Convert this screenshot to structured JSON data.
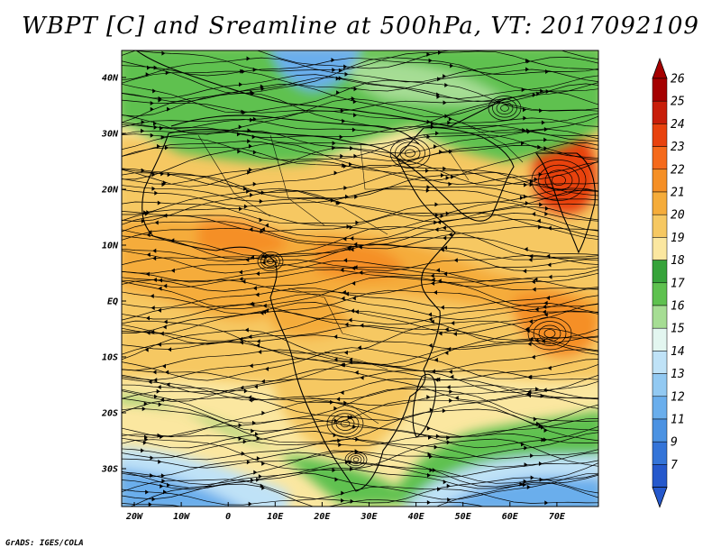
{
  "title": "WBPT [C] and Sreamline at 500hPa, VT: 2017092109",
  "credit": "GrADS: IGES/COLA",
  "lon_labels": [
    "20W",
    "10W",
    "0",
    "10E",
    "20E",
    "30E",
    "40E",
    "50E",
    "60E",
    "70E"
  ],
  "lat_labels": [
    "40N",
    "30N",
    "20N",
    "10N",
    "EQ",
    "10S",
    "20S",
    "30S"
  ],
  "colorbar": {
    "labels": [
      "26",
      "25",
      "24",
      "23",
      "22",
      "21",
      "20",
      "19",
      "18",
      "17",
      "16",
      "15",
      "14",
      "13",
      "12",
      "11",
      "9",
      "7"
    ],
    "colors": [
      "#a50000",
      "#c81e0a",
      "#e8420e",
      "#f56a1b",
      "#f58f25",
      "#f5ac3a",
      "#f6c862",
      "#fbe7a0",
      "#36a33a",
      "#5ec14f",
      "#a6dd94",
      "#e3f6f0",
      "#bfe2f7",
      "#92c9f2",
      "#6aaeec",
      "#4b92e2",
      "#3474d8",
      "#2558cc"
    ],
    "top_arrow": "#a50000",
    "bottom_arrow": "#2558cc"
  },
  "palette": {
    "green": "#5ec14f",
    "lightgreen": "#a6dd94",
    "pale": "#fbe7a0",
    "tan": "#f6c862",
    "orange": "#f5ac3a",
    "darkorange": "#f58f25",
    "red": "#e8420e",
    "blue": "#6aaeec",
    "lightblue": "#bfe2f7"
  }
}
